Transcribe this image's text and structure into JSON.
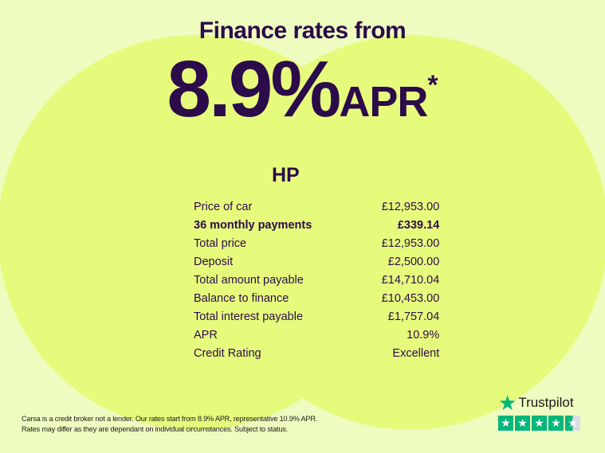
{
  "headline": "Finance rates from",
  "rate": "8.9%",
  "apr": "APR",
  "asterisk": "*",
  "plan": {
    "title": "HP",
    "rows": [
      {
        "label": "Price of car",
        "value": "£12,953.00",
        "bold": false
      },
      {
        "label": "36 monthly payments",
        "value": "£339.14",
        "bold": true
      },
      {
        "label": "Total price",
        "value": "£12,953.00",
        "bold": false
      },
      {
        "label": "Deposit",
        "value": "£2,500.00",
        "bold": false
      },
      {
        "label": "Total amount payable",
        "value": "£14,710.04",
        "bold": false
      },
      {
        "label": "Balance to finance",
        "value": "£10,453.00",
        "bold": false
      },
      {
        "label": "Total interest payable",
        "value": "£1,757.04",
        "bold": false
      },
      {
        "label": "APR",
        "value": "10.9%",
        "bold": false
      },
      {
        "label": "Credit Rating",
        "value": "Excellent",
        "bold": false
      }
    ]
  },
  "disclaimer": {
    "line1": "Carsa is a credit broker not a lender. Our rates start from 8.9% APR, representative 10.9% APR.",
    "line2": "Rates may differ as they are dependant on individual circumstances. Subject to status."
  },
  "trustpilot": {
    "name": "Trustpilot",
    "rating_stars": 4.5,
    "icon": "star-icon",
    "color": "#00b67a"
  },
  "colors": {
    "text": "#2b0b4a",
    "background": "#effcc0",
    "circle": "#e6fb7c"
  }
}
